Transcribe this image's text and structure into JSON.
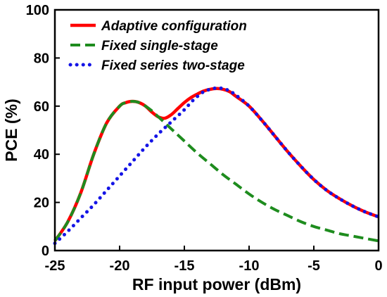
{
  "chart_data": {
    "type": "line",
    "xlabel": "RF input power  (dBm)",
    "ylabel": "PCE  (%)",
    "xlim": [
      -25,
      0
    ],
    "ylim": [
      0,
      100
    ],
    "x_ticks": [
      -25,
      -20,
      -15,
      -10,
      -5,
      0
    ],
    "y_ticks": [
      0,
      20,
      40,
      60,
      80,
      100
    ],
    "grid": false,
    "legend_position": "top-left",
    "series": [
      {
        "name": "Adaptive configuration",
        "color": "#ff0000",
        "style": "solid",
        "x": [
          -25,
          -24,
          -23,
          -22,
          -21,
          -20,
          -19.5,
          -19,
          -18.5,
          -18,
          -17.5,
          -17,
          -16.5,
          -16,
          -15.5,
          -15,
          -14.5,
          -14,
          -13.5,
          -13,
          -12.5,
          -12,
          -11.5,
          -11,
          -10,
          -9,
          -8,
          -7,
          -6,
          -5,
          -4,
          -3,
          -2,
          -1,
          0
        ],
        "y": [
          4,
          12,
          24,
          40,
          53,
          60,
          61.5,
          62,
          61.5,
          60,
          57.5,
          55.5,
          55,
          56.5,
          59,
          61.5,
          63.5,
          65,
          66.3,
          67,
          67.3,
          67,
          66,
          64,
          60,
          54,
          47.5,
          41,
          35,
          29.5,
          25,
          21.5,
          18.5,
          16,
          14
        ]
      },
      {
        "name": "Fixed single-stage",
        "color": "#1e8c1e",
        "style": "dashed",
        "x": [
          -25,
          -24,
          -23,
          -22,
          -21,
          -20,
          -19.5,
          -19,
          -18.5,
          -18,
          -17.5,
          -17,
          -16.5,
          -16,
          -15,
          -14,
          -13,
          -12,
          -11,
          -10,
          -9,
          -8,
          -7,
          -6,
          -5,
          -4,
          -3,
          -2,
          -1,
          0
        ],
        "y": [
          4,
          12,
          24,
          40,
          53,
          60,
          61.5,
          62,
          61.5,
          60,
          58,
          55.5,
          53,
          50.5,
          45.5,
          40.5,
          36,
          31.5,
          27.5,
          23.5,
          20,
          17,
          14.5,
          12,
          10,
          8.5,
          7,
          6,
          5,
          4
        ]
      },
      {
        "name": "Fixed series two-stage",
        "color": "#1414e6",
        "style": "dotted",
        "x": [
          -25,
          -24,
          -23,
          -22,
          -21,
          -20,
          -19,
          -18,
          -17,
          -16,
          -15,
          -14.5,
          -14,
          -13.5,
          -13,
          -12.5,
          -12,
          -11.5,
          -11,
          -10,
          -9,
          -8,
          -7,
          -6,
          -5,
          -4,
          -3,
          -2,
          -1,
          0
        ],
        "y": [
          3,
          8,
          13.5,
          19,
          25,
          31,
          37,
          43,
          48.5,
          53.5,
          58.5,
          61.5,
          64,
          66,
          67,
          67.5,
          67.3,
          66.3,
          64.5,
          60,
          54,
          47.5,
          41,
          35,
          29.5,
          25,
          21.5,
          18.5,
          16,
          14
        ]
      }
    ]
  }
}
